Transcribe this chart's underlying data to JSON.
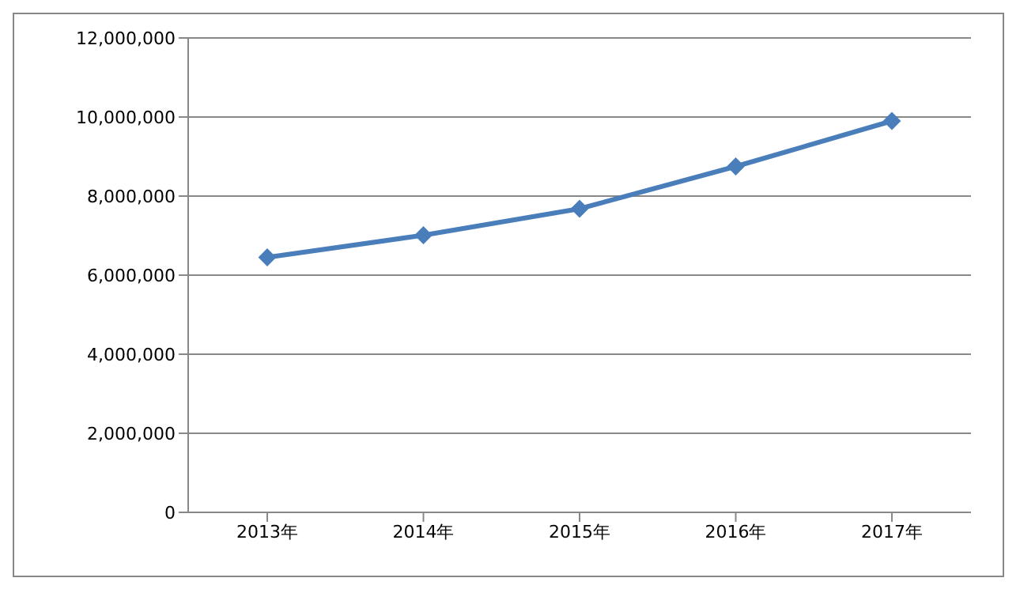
{
  "chart_data": {
    "type": "line",
    "categories": [
      "2013年",
      "2014年",
      "2015年",
      "2016年",
      "2017年"
    ],
    "series": [
      {
        "color": "#4a7ebb",
        "values": [
          6450000,
          7010000,
          7680000,
          8750000,
          9900000
        ]
      }
    ],
    "ylim": [
      0,
      12000000
    ],
    "yticks": [
      {
        "value": 0,
        "label": "0"
      },
      {
        "value": 2000000,
        "label": "2,000,000"
      },
      {
        "value": 4000000,
        "label": "4,000,000"
      },
      {
        "value": 6000000,
        "label": "6,000,000"
      },
      {
        "value": 8000000,
        "label": "8,000,000"
      },
      {
        "value": 10000000,
        "label": "10,000,000"
      },
      {
        "value": 12000000,
        "label": "12,000,000"
      }
    ],
    "grid": "y",
    "marker": "diamond",
    "line_style": "solid",
    "legend": false
  }
}
